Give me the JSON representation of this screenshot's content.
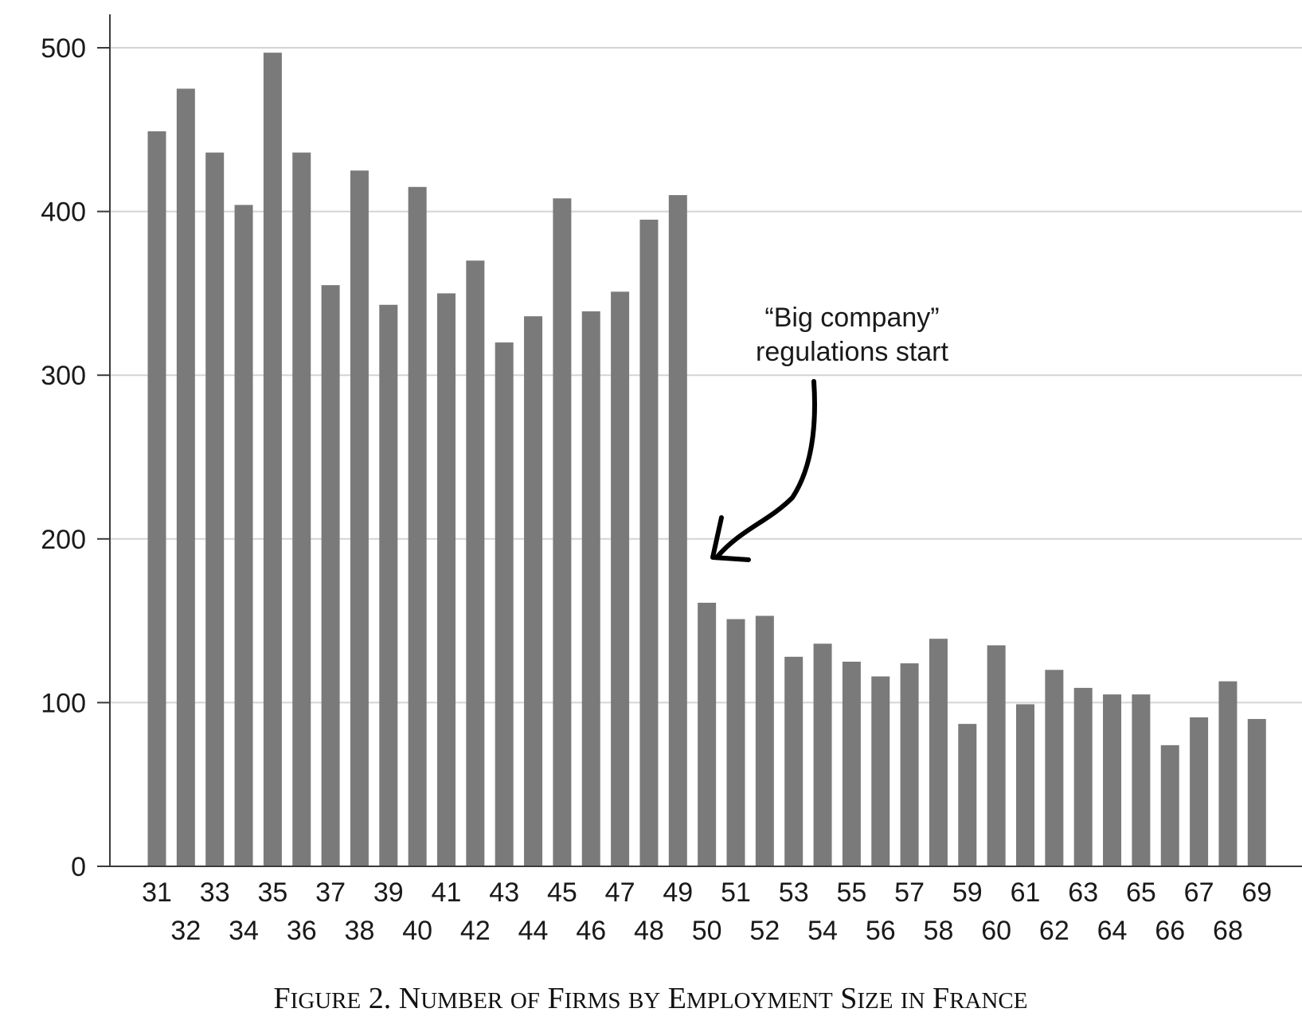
{
  "chart_data": {
    "type": "bar",
    "title": "Figure 2. Number of Firms by Employment Size in France",
    "caption": {
      "figure_label": "Figure 2.",
      "words": [
        "Number",
        "of",
        "Firms",
        "by",
        "Employment",
        "Size",
        "in",
        "France"
      ]
    },
    "xlabel": "",
    "ylabel": "",
    "categories": [
      "31",
      "32",
      "33",
      "34",
      "35",
      "36",
      "37",
      "38",
      "39",
      "40",
      "41",
      "42",
      "43",
      "44",
      "45",
      "46",
      "47",
      "48",
      "49",
      "50",
      "51",
      "52",
      "53",
      "54",
      "55",
      "56",
      "57",
      "58",
      "59",
      "60",
      "61",
      "62",
      "63",
      "64",
      "65",
      "66",
      "67",
      "68",
      "69"
    ],
    "values": [
      449,
      475,
      436,
      404,
      497,
      436,
      355,
      425,
      343,
      415,
      350,
      370,
      320,
      336,
      408,
      339,
      351,
      395,
      410,
      161,
      151,
      153,
      128,
      136,
      125,
      116,
      124,
      139,
      87,
      135,
      99,
      120,
      109,
      105,
      105,
      74,
      91,
      113,
      90
    ],
    "ylim": [
      0,
      500
    ],
    "yticks": [
      0,
      100,
      200,
      300,
      400,
      500
    ],
    "ytick_labels": [
      "0",
      "100",
      "200",
      "300",
      "400",
      "500"
    ],
    "grid": true,
    "bar_color": "#7a7a7a",
    "grid_color": "#d4d4d4",
    "axis_color": "#3a3a3a",
    "annotation": {
      "lines": [
        "“Big company”",
        "regulations start"
      ],
      "points_to": "50"
    }
  }
}
